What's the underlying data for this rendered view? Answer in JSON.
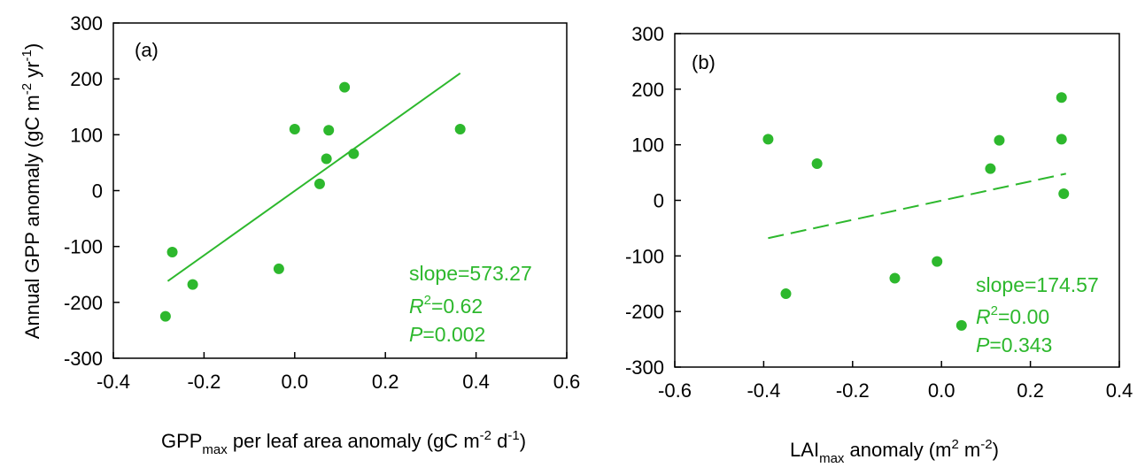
{
  "chart_data": [
    {
      "type": "scatter",
      "panel_label": "(a)",
      "xlabel": {
        "main": "GPP",
        "sub": "max",
        "rest_before_sup1": " per leaf area anomaly (gC m",
        "sup1": "-2",
        "mid": " d",
        "sup2": "-1",
        "end": ")"
      },
      "ylabel": {
        "main": "Annual GPP anomaly (gC m",
        "sup1": "-2",
        "mid": " yr",
        "sup2": "-1",
        "end": ")"
      },
      "xlim": [
        -0.4,
        0.6
      ],
      "ylim": [
        -300,
        300
      ],
      "xticks": [
        "-0.4",
        "-0.2",
        "0.0",
        "0.2",
        "0.4",
        "0.6"
      ],
      "yticks": [
        "-300",
        "-200",
        "-100",
        "0",
        "100",
        "200",
        "300"
      ],
      "x": [
        -0.285,
        -0.27,
        -0.225,
        -0.035,
        0.0,
        0.055,
        0.07,
        0.075,
        0.11,
        0.13,
        0.365
      ],
      "y": [
        -225,
        -110,
        -168,
        -140,
        110,
        12,
        57,
        108,
        185,
        66,
        110
      ],
      "fit_line": {
        "x": [
          -0.28,
          0.365
        ],
        "y": [
          -162,
          210
        ],
        "style": "solid"
      },
      "stats": {
        "slope": "slope=573.27",
        "r2_sym": "R",
        "r2_sup": "2",
        "r2_val": "=0.62",
        "p_sym": "P",
        "p_val": "=0.002"
      },
      "color": "#2db82d"
    },
    {
      "type": "scatter",
      "panel_label": "(b)",
      "xlabel": {
        "main": "LAI",
        "sub": "max",
        "rest_before_sup1": " anomaly (m",
        "sup1": "2",
        "mid": " m",
        "sup2": "-2",
        "end": ")"
      },
      "xlim": [
        -0.6,
        0.4
      ],
      "ylim": [
        -300,
        300
      ],
      "xticks": [
        "-0.6",
        "-0.4",
        "-0.2",
        "0.0",
        "0.2",
        "0.4"
      ],
      "yticks": [
        "-300",
        "-200",
        "-100",
        "0",
        "100",
        "200",
        "300"
      ],
      "x": [
        -0.39,
        -0.35,
        -0.28,
        -0.105,
        -0.01,
        0.045,
        0.11,
        0.13,
        0.27,
        0.27,
        0.275
      ],
      "y": [
        110,
        -168,
        66,
        -140,
        -110,
        -225,
        57,
        108,
        185,
        110,
        12
      ],
      "fit_line": {
        "x": [
          -0.39,
          0.28
        ],
        "y": [
          -68,
          48
        ],
        "style": "dashed"
      },
      "stats": {
        "slope": "slope=174.57",
        "r2_sym": "R",
        "r2_sup": "2",
        "r2_val": "=0.00",
        "p_sym": "P",
        "p_val": "=0.343"
      },
      "color": "#2db82d"
    }
  ]
}
